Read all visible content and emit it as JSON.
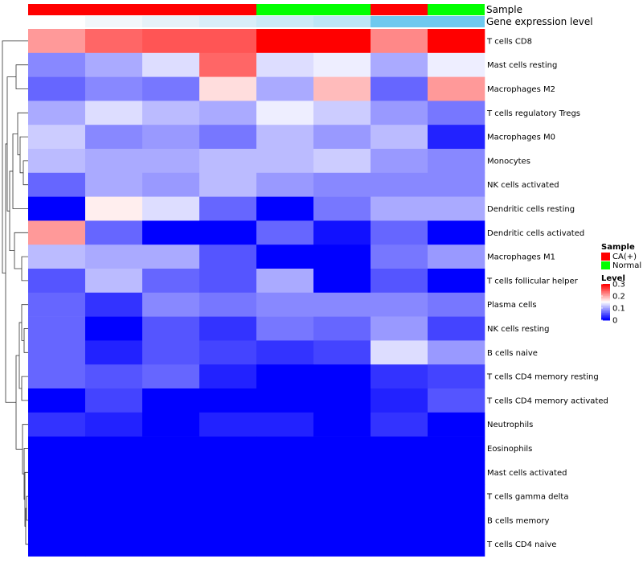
{
  "chart_data": {
    "type": "heatmap",
    "title": "",
    "annotation_labels": {
      "sample": "Sample",
      "gene_expression": "Gene expression level"
    },
    "sample_groups": [
      "CA(+)",
      "CA(+)",
      "CA(+)",
      "CA(+)",
      "Normal",
      "Normal",
      "CA(+)",
      "Normal"
    ],
    "gene_expression_levels": [
      0.0,
      0.02,
      0.04,
      0.06,
      0.08,
      0.1,
      0.2,
      0.22
    ],
    "gene_expression_colors": [
      "#ffffff",
      "#f2f7fa",
      "#e6f1f8",
      "#d9edf8",
      "#cbe9f7",
      "#bde5f6",
      "#6ec9ef",
      "#6ec9ef"
    ],
    "rows": [
      "T cells CD8",
      "Mast cells resting",
      "Macrophages M2",
      "T cells regulatory  Tregs",
      "Macrophages M0",
      "Monocytes",
      "NK cells activated",
      "Dendritic cells resting",
      "Dendritic cells activated",
      "Macrophages M1",
      "T cells follicular helper",
      "Plasma cells",
      "NK cells resting",
      "B cells naive",
      "T cells CD4 memory resting",
      "T cells CD4 memory activated",
      "Neutrophils",
      "Eosinophils",
      "Mast cells activated",
      "T cells gamma delta",
      "B cells memory",
      "T cells CD4 naive"
    ],
    "values": [
      [
        0.21,
        0.24,
        0.25,
        0.25,
        0.3,
        0.3,
        0.22,
        0.3
      ],
      [
        0.08,
        0.1,
        0.13,
        0.24,
        0.13,
        0.14,
        0.1,
        0.14
      ],
      [
        0.06,
        0.08,
        0.07,
        0.17,
        0.1,
        0.19,
        0.06,
        0.21
      ],
      [
        0.1,
        0.13,
        0.11,
        0.1,
        0.14,
        0.12,
        0.09,
        0.07
      ],
      [
        0.12,
        0.08,
        0.09,
        0.07,
        0.11,
        0.09,
        0.11,
        0.02
      ],
      [
        0.11,
        0.1,
        0.1,
        0.11,
        0.11,
        0.12,
        0.09,
        0.08
      ],
      [
        0.06,
        0.1,
        0.09,
        0.11,
        0.09,
        0.08,
        0.08,
        0.08
      ],
      [
        0.0,
        0.16,
        0.13,
        0.06,
        0.0,
        0.07,
        0.1,
        0.1
      ],
      [
        0.21,
        0.06,
        0.0,
        0.0,
        0.06,
        0.01,
        0.06,
        0.0
      ],
      [
        0.11,
        0.1,
        0.1,
        0.05,
        0.0,
        0.0,
        0.07,
        0.09
      ],
      [
        0.05,
        0.11,
        0.06,
        0.05,
        0.1,
        0.0,
        0.05,
        0.0
      ],
      [
        0.06,
        0.03,
        0.08,
        0.07,
        0.08,
        0.08,
        0.08,
        0.07
      ],
      [
        0.06,
        0.0,
        0.05,
        0.03,
        0.07,
        0.06,
        0.09,
        0.04
      ],
      [
        0.06,
        0.02,
        0.05,
        0.04,
        0.03,
        0.04,
        0.13,
        0.09
      ],
      [
        0.06,
        0.05,
        0.06,
        0.02,
        0.0,
        0.0,
        0.03,
        0.04
      ],
      [
        0.0,
        0.04,
        0.0,
        0.0,
        0.0,
        0.0,
        0.02,
        0.05
      ],
      [
        0.03,
        0.02,
        0.0,
        0.02,
        0.02,
        0.0,
        0.03,
        0.0
      ],
      [
        0.0,
        0.0,
        0.0,
        0.0,
        0.0,
        0.0,
        0.0,
        0.0
      ],
      [
        0.0,
        0.0,
        0.0,
        0.0,
        0.0,
        0.0,
        0.0,
        0.0
      ],
      [
        0.0,
        0.0,
        0.0,
        0.0,
        0.0,
        0.0,
        0.0,
        0.0
      ],
      [
        0.0,
        0.0,
        0.0,
        0.0,
        0.0,
        0.0,
        0.0,
        0.0
      ],
      [
        0.0,
        0.0,
        0.0,
        0.0,
        0.0,
        0.0,
        0.0,
        0.0
      ]
    ],
    "color_scale": {
      "min": 0,
      "mid": 0.15,
      "max": 0.3,
      "low": "#0000ff",
      "mid_color": "#ffffff",
      "high": "#ff0000"
    },
    "legend": {
      "sample_title": "Sample",
      "sample_items": [
        {
          "label": "CA(+)",
          "color": "#ff0000"
        },
        {
          "label": "Normal",
          "color": "#00ff00"
        }
      ],
      "level_title": "Level",
      "level_ticks": [
        "0.3",
        "0.2",
        "0.1",
        "0"
      ],
      "level_tick_values": [
        0.3,
        0.2,
        0.1,
        0
      ]
    },
    "dendrogram": "row clustering shown on left"
  }
}
